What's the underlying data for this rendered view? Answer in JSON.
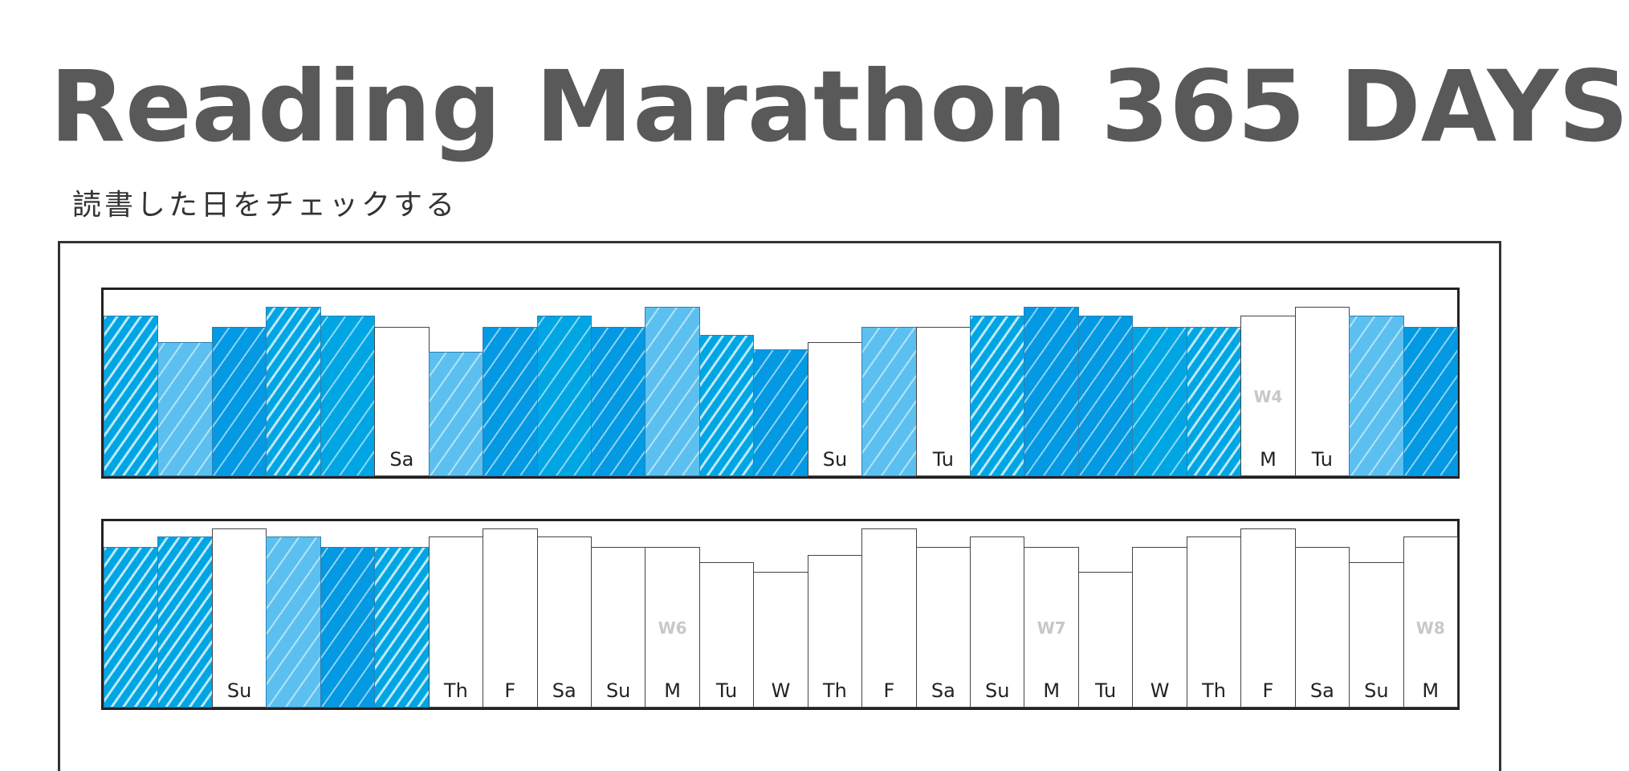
{
  "title": "Reading Marathon 365 DAYS",
  "subtitle": "読書した日をチェックする",
  "colors": {
    "title": "#595959",
    "read_light": "#5bc0ef",
    "read_mid": "#00a6e4",
    "read_deep": "#0399e3",
    "unread": "#ffffff",
    "week_label": "#c8c8c8"
  },
  "rows": [
    {
      "days": [
        {
          "day": "",
          "read": true,
          "shade": "mid",
          "hatch": true,
          "level": 0.86
        },
        {
          "day": "",
          "read": true,
          "shade": "light",
          "hatch": false,
          "level": 0.72
        },
        {
          "day": "",
          "read": true,
          "shade": "deep",
          "hatch": false,
          "level": 0.8
        },
        {
          "day": "",
          "read": true,
          "shade": "mid",
          "hatch": true,
          "level": 0.91
        },
        {
          "day": "",
          "read": true,
          "shade": "mid",
          "hatch": false,
          "level": 0.86
        },
        {
          "day": "Sa",
          "read": false,
          "level": 0.8
        },
        {
          "day": "",
          "read": true,
          "shade": "light",
          "hatch": false,
          "level": 0.67
        },
        {
          "day": "",
          "read": true,
          "shade": "deep",
          "hatch": false,
          "level": 0.8
        },
        {
          "day": "",
          "read": true,
          "shade": "mid",
          "hatch": false,
          "level": 0.86
        },
        {
          "day": "",
          "read": true,
          "shade": "deep",
          "hatch": false,
          "level": 0.8
        },
        {
          "day": "",
          "read": true,
          "shade": "light",
          "hatch": false,
          "level": 0.91
        },
        {
          "day": "",
          "read": true,
          "shade": "mid",
          "hatch": true,
          "level": 0.76
        },
        {
          "day": "",
          "read": true,
          "shade": "deep",
          "hatch": false,
          "level": 0.68
        },
        {
          "day": "Su",
          "read": false,
          "level": 0.72
        },
        {
          "day": "",
          "read": true,
          "shade": "light",
          "hatch": false,
          "level": 0.8
        },
        {
          "day": "Tu",
          "read": false,
          "level": 0.8
        },
        {
          "day": "",
          "read": true,
          "shade": "mid",
          "hatch": true,
          "level": 0.86
        },
        {
          "day": "",
          "read": true,
          "shade": "deep",
          "hatch": false,
          "level": 0.91
        },
        {
          "day": "",
          "read": true,
          "shade": "deep",
          "hatch": false,
          "level": 0.86
        },
        {
          "day": "",
          "read": true,
          "shade": "mid",
          "hatch": false,
          "level": 0.8
        },
        {
          "day": "",
          "read": true,
          "shade": "mid",
          "hatch": true,
          "level": 0.8
        },
        {
          "day": "M",
          "read": false,
          "week": "W4",
          "level": 0.86
        },
        {
          "day": "Tu",
          "read": false,
          "level": 0.91
        },
        {
          "day": "",
          "read": true,
          "shade": "light",
          "hatch": false,
          "level": 0.86
        },
        {
          "day": "",
          "read": true,
          "shade": "deep",
          "hatch": false,
          "level": 0.8
        }
      ]
    },
    {
      "days": [
        {
          "day": "",
          "read": true,
          "shade": "mid",
          "hatch": true,
          "level": 0.86
        },
        {
          "day": "",
          "read": true,
          "shade": "mid",
          "hatch": true,
          "level": 0.92
        },
        {
          "day": "Su",
          "read": false,
          "level": 0.96
        },
        {
          "day": "",
          "read": true,
          "shade": "light",
          "hatch": false,
          "level": 0.92
        },
        {
          "day": "",
          "read": true,
          "shade": "deep",
          "hatch": false,
          "level": 0.86
        },
        {
          "day": "",
          "read": true,
          "shade": "mid",
          "hatch": true,
          "level": 0.86
        },
        {
          "day": "Th",
          "read": false,
          "level": 0.92
        },
        {
          "day": "F",
          "read": false,
          "level": 0.96
        },
        {
          "day": "Sa",
          "read": false,
          "level": 0.92
        },
        {
          "day": "Su",
          "read": false,
          "level": 0.86
        },
        {
          "day": "M",
          "read": false,
          "week": "W6",
          "level": 0.86
        },
        {
          "day": "Tu",
          "read": false,
          "level": 0.78
        },
        {
          "day": "W",
          "read": false,
          "level": 0.73
        },
        {
          "day": "Th",
          "read": false,
          "level": 0.82
        },
        {
          "day": "F",
          "read": false,
          "level": 0.96
        },
        {
          "day": "Sa",
          "read": false,
          "level": 0.86
        },
        {
          "day": "Su",
          "read": false,
          "level": 0.92
        },
        {
          "day": "M",
          "read": false,
          "week": "W7",
          "level": 0.86
        },
        {
          "day": "Tu",
          "read": false,
          "level": 0.73
        },
        {
          "day": "W",
          "read": false,
          "level": 0.86
        },
        {
          "day": "Th",
          "read": false,
          "level": 0.92
        },
        {
          "day": "F",
          "read": false,
          "level": 0.96
        },
        {
          "day": "Sa",
          "read": false,
          "level": 0.86
        },
        {
          "day": "Su",
          "read": false,
          "level": 0.78
        },
        {
          "day": "M",
          "read": false,
          "week": "W8",
          "level": 0.92
        }
      ]
    }
  ]
}
